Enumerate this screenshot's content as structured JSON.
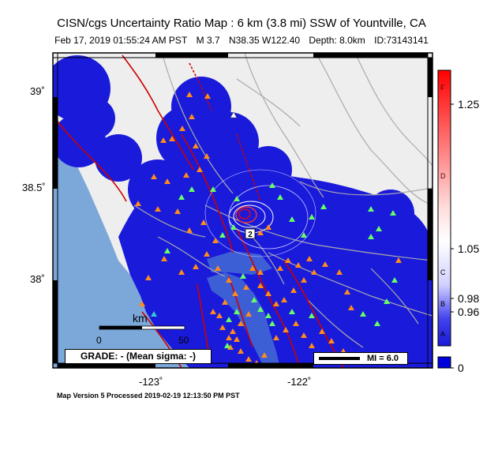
{
  "header": {
    "title": "CISN/cgs Uncertainty Ratio Map : 6 km (3.8 mi) SSW of Yountville, CA",
    "date": "Feb 17, 2019 01:55:24 AM PST",
    "magnitude": "M 3.7",
    "coords": "N38.35 W122.40",
    "depth": "Depth: 8.0km",
    "event_id": "ID:73143141"
  },
  "axes": {
    "lat_ticks": [
      "39˚",
      "38.5˚",
      "38˚"
    ],
    "lon_ticks": [
      "-123˚",
      "-122˚"
    ]
  },
  "scalebar": {
    "unit": "km",
    "min": "0",
    "max": "50"
  },
  "grade_box": "GRADE: - (Mean sigma: -)",
  "mi_legend": "MI = 6.0",
  "colorbar": {
    "values": [
      "1.25",
      "1.05",
      "0.98",
      "0.96",
      "0"
    ],
    "letters": [
      "F",
      "D",
      "C",
      "B",
      "A"
    ],
    "colors": {
      "high": "#ff0000",
      "mid": "#ffffff",
      "low": "#0000dd"
    }
  },
  "footer": "Map Version 5 Processed 2019-02-19 12:13:50 PM PST",
  "map_colors": {
    "water": "#7ba7d9",
    "land": "#eeeeee",
    "uncertainty": "#1a1adb",
    "fault": "#cc0000"
  },
  "station_symbols": {
    "orange": "#ff8c1a",
    "green": "#66ff66",
    "teal": "#33cccc"
  }
}
